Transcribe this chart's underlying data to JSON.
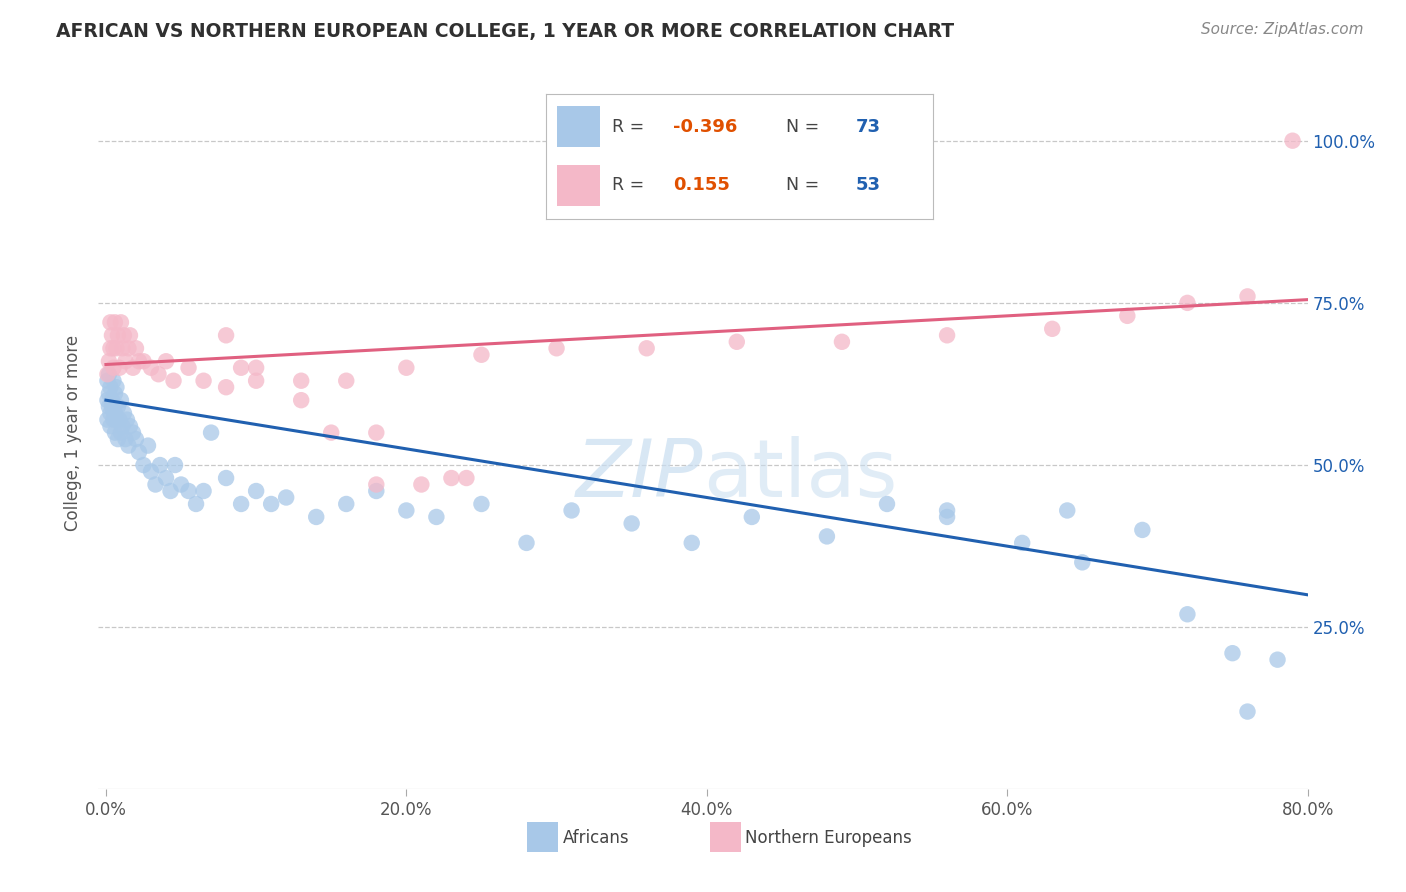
{
  "title": "AFRICAN VS NORTHERN EUROPEAN COLLEGE, 1 YEAR OR MORE CORRELATION CHART",
  "source": "Source: ZipAtlas.com",
  "xlabel_ticks": [
    "0.0%",
    "20.0%",
    "40.0%",
    "60.0%",
    "80.0%"
  ],
  "xlabel_tick_vals": [
    0.0,
    0.2,
    0.4,
    0.6,
    0.8
  ],
  "ylabel_ticks": [
    "25.0%",
    "50.0%",
    "75.0%",
    "100.0%"
  ],
  "ylabel_tick_vals": [
    0.25,
    0.5,
    0.75,
    1.0
  ],
  "ylabel_label": "College, 1 year or more",
  "legend_label1": "Africans",
  "legend_label2": "Northern Europeans",
  "R1": -0.396,
  "N1": 73,
  "R2": 0.155,
  "N2": 53,
  "color_blue": "#a8c8e8",
  "color_pink": "#f4b8c8",
  "line_blue": "#2060b0",
  "line_pink": "#e06080",
  "text_R_color": "#e05000",
  "text_N_color": "#2060b0",
  "background": "#ffffff",
  "grid_color": "#c8c8c8",
  "title_color": "#303030",
  "source_color": "#888888",
  "axis_label_color": "#555555",
  "watermark_color": "#c8ddf0",
  "blue_line_start_y": 0.6,
  "blue_line_end_y": 0.3,
  "pink_line_start_y": 0.655,
  "pink_line_end_y": 0.755,
  "africans_x": [
    0.001,
    0.001,
    0.001,
    0.002,
    0.002,
    0.002,
    0.003,
    0.003,
    0.003,
    0.004,
    0.004,
    0.005,
    0.005,
    0.006,
    0.006,
    0.006,
    0.007,
    0.007,
    0.008,
    0.008,
    0.009,
    0.01,
    0.01,
    0.011,
    0.012,
    0.013,
    0.014,
    0.015,
    0.016,
    0.018,
    0.02,
    0.022,
    0.025,
    0.028,
    0.03,
    0.033,
    0.036,
    0.04,
    0.043,
    0.046,
    0.05,
    0.055,
    0.06,
    0.065,
    0.07,
    0.08,
    0.09,
    0.1,
    0.11,
    0.12,
    0.14,
    0.16,
    0.18,
    0.2,
    0.22,
    0.25,
    0.28,
    0.31,
    0.35,
    0.39,
    0.43,
    0.48,
    0.52,
    0.56,
    0.61,
    0.65,
    0.69,
    0.72,
    0.75,
    0.78,
    0.56,
    0.64,
    0.76
  ],
  "africans_y": [
    0.6,
    0.63,
    0.57,
    0.61,
    0.59,
    0.64,
    0.58,
    0.62,
    0.56,
    0.6,
    0.59,
    0.63,
    0.57,
    0.61,
    0.58,
    0.55,
    0.62,
    0.57,
    0.59,
    0.54,
    0.57,
    0.55,
    0.6,
    0.56,
    0.58,
    0.54,
    0.57,
    0.53,
    0.56,
    0.55,
    0.54,
    0.52,
    0.5,
    0.53,
    0.49,
    0.47,
    0.5,
    0.48,
    0.46,
    0.5,
    0.47,
    0.46,
    0.44,
    0.46,
    0.55,
    0.48,
    0.44,
    0.46,
    0.44,
    0.45,
    0.42,
    0.44,
    0.46,
    0.43,
    0.42,
    0.44,
    0.38,
    0.43,
    0.41,
    0.38,
    0.42,
    0.39,
    0.44,
    0.42,
    0.38,
    0.35,
    0.4,
    0.27,
    0.21,
    0.2,
    0.43,
    0.43,
    0.12
  ],
  "northern_x": [
    0.001,
    0.002,
    0.003,
    0.003,
    0.004,
    0.005,
    0.005,
    0.006,
    0.007,
    0.008,
    0.009,
    0.01,
    0.011,
    0.012,
    0.013,
    0.015,
    0.016,
    0.018,
    0.02,
    0.022,
    0.025,
    0.03,
    0.035,
    0.04,
    0.045,
    0.055,
    0.065,
    0.08,
    0.1,
    0.13,
    0.16,
    0.2,
    0.25,
    0.3,
    0.36,
    0.42,
    0.49,
    0.56,
    0.63,
    0.68,
    0.72,
    0.76,
    0.15,
    0.18,
    0.23,
    0.08,
    0.1,
    0.13,
    0.18,
    0.21,
    0.24,
    0.09,
    0.79
  ],
  "northern_y": [
    0.64,
    0.66,
    0.68,
    0.72,
    0.7,
    0.65,
    0.68,
    0.72,
    0.68,
    0.7,
    0.65,
    0.72,
    0.68,
    0.7,
    0.66,
    0.68,
    0.7,
    0.65,
    0.68,
    0.66,
    0.66,
    0.65,
    0.64,
    0.66,
    0.63,
    0.65,
    0.63,
    0.7,
    0.65,
    0.63,
    0.63,
    0.65,
    0.67,
    0.68,
    0.68,
    0.69,
    0.69,
    0.7,
    0.71,
    0.73,
    0.75,
    0.76,
    0.55,
    0.47,
    0.48,
    0.62,
    0.63,
    0.6,
    0.55,
    0.47,
    0.48,
    0.65,
    1.0
  ]
}
